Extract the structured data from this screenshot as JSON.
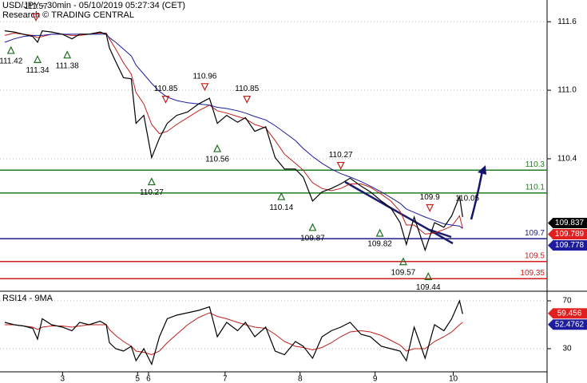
{
  "chart_data": [
    {
      "type": "line",
      "title": "USD/JPY - 30min - 05/10/2019 05:27:34 (CET)",
      "subtitle": "Research © TRADING CENTRAL",
      "x": [
        2,
        8,
        14,
        20,
        23,
        26,
        32,
        39,
        45,
        50,
        56,
        63,
        67,
        69,
        73,
        78,
        83,
        86,
        91,
        96,
        101,
        106,
        112,
        119,
        126,
        133,
        138,
        144,
        151,
        156,
        162,
        169,
        175,
        181,
        188,
        193,
        199,
        205,
        211,
        217,
        223,
        230,
        236,
        243,
        249,
        255,
        259,
        264,
        271,
        277,
        283,
        288,
        293,
        295
      ],
      "xlim": [
        0,
        348
      ],
      "ylim": [
        109.24,
        111.79
      ],
      "yticks": [
        111.6,
        {
          "value": 111,
          "label": "111.0"
        },
        110.4
      ],
      "grid": true,
      "series": [
        {
          "color": "#000000",
          "values": [
            111.52,
            111.51,
            111.49,
            111.47,
            111.42,
            111.52,
            111.51,
            111.49,
            111.45,
            111.49,
            111.49,
            111.51,
            111.49,
            111.37,
            111.25,
            111.11,
            111.1,
            110.71,
            110.78,
            110.41,
            110.58,
            110.71,
            110.78,
            110.81,
            110.88,
            110.93,
            110.71,
            110.78,
            110.72,
            110.76,
            110.64,
            110.68,
            110.41,
            110.31,
            110.31,
            110.24,
            110.03,
            110.11,
            110.14,
            110.18,
            110.23,
            110.16,
            110.11,
            110.03,
            109.97,
            109.84,
            109.65,
            109.89,
            109.6,
            109.84,
            109.8,
            109.9,
            110.07,
            109.89
          ]
        },
        {
          "color": "#1c1c9c",
          "values": [
            111.42,
            111.45,
            111.47,
            111.48,
            111.48,
            111.48,
            111.49,
            111.49,
            111.49,
            111.49,
            111.49,
            111.49,
            111.49,
            111.46,
            111.42,
            111.36,
            111.3,
            111.22,
            111.14,
            111.06,
            110.99,
            110.94,
            110.91,
            110.89,
            110.88,
            110.87,
            110.85,
            110.84,
            110.82,
            110.8,
            110.77,
            110.74,
            110.69,
            110.63,
            110.56,
            110.49,
            110.42,
            110.36,
            110.31,
            110.27,
            110.24,
            110.2,
            110.16,
            110.11,
            110.06,
            110.01,
            109.96,
            109.93,
            109.89,
            109.86,
            109.83,
            109.82,
            109.81,
            109.79
          ]
        },
        {
          "color": "#c0201c",
          "values": [
            111.48,
            111.5,
            111.49,
            111.48,
            111.46,
            111.47,
            111.49,
            111.49,
            111.48,
            111.48,
            111.49,
            111.5,
            111.5,
            111.45,
            111.36,
            111.24,
            111.14,
            110.98,
            110.88,
            110.7,
            110.62,
            110.64,
            110.7,
            110.76,
            110.82,
            110.87,
            110.82,
            110.8,
            110.77,
            110.75,
            110.7,
            110.67,
            110.56,
            110.44,
            110.36,
            110.3,
            110.19,
            110.14,
            110.12,
            110.14,
            110.18,
            110.18,
            110.15,
            110.09,
            110.03,
            109.94,
            109.82,
            109.82,
            109.74,
            109.75,
            109.78,
            109.81,
            109.9,
            109.79
          ]
        }
      ],
      "levels": [
        {
          "value": 110.3,
          "color": "#1e7d1e"
        },
        {
          "value": 110.1,
          "color": "#1e7d1e"
        },
        {
          "value": 109.7,
          "color": "#1c1c8c"
        },
        {
          "value": 109.5,
          "color": "#d01c1c"
        },
        {
          "value": 109.35,
          "color": "#d01c1c"
        }
      ],
      "last_values": [
        {
          "value": 109.837,
          "color": "#000000"
        },
        {
          "value": 109.789,
          "color": "#e02020"
        },
        {
          "value": 109.778,
          "color": "#1c1c9c"
        }
      ],
      "annotations": [
        {
          "value": 111.42,
          "x": 6,
          "kind": "low"
        },
        {
          "value": 111.57,
          "x": 22,
          "kind": "high"
        },
        {
          "value": 111.34,
          "x": 23,
          "kind": "low"
        },
        {
          "value": 111.38,
          "x": 42,
          "kind": "low"
        },
        {
          "value": 110.27,
          "x": 96,
          "kind": "low"
        },
        {
          "value": 110.85,
          "x": 105,
          "kind": "high"
        },
        {
          "value": 110.96,
          "x": 130,
          "kind": "high"
        },
        {
          "value": 110.56,
          "x": 138,
          "kind": "low"
        },
        {
          "value": 110.85,
          "x": 157,
          "kind": "high"
        },
        {
          "value": 110.14,
          "x": 179,
          "kind": "low"
        },
        {
          "value": 109.87,
          "x": 199,
          "kind": "low"
        },
        {
          "value": 110.27,
          "x": 217,
          "kind": "high"
        },
        {
          "value": 109.82,
          "x": 242,
          "kind": "low"
        },
        {
          "value": 109.57,
          "x": 257,
          "kind": "low"
        },
        {
          "value": 109.44,
          "x": 273,
          "kind": "low"
        },
        {
          "value": 109.9,
          "x": 274,
          "kind": "high"
        },
        {
          "value": 110.05,
          "x": 298,
          "kind": "target"
        }
      ]
    },
    {
      "type": "line",
      "title": "RSI14 - 9MA",
      "x": [
        2,
        8,
        14,
        20,
        23,
        26,
        32,
        39,
        45,
        50,
        56,
        63,
        67,
        69,
        73,
        78,
        83,
        86,
        91,
        96,
        101,
        106,
        112,
        119,
        126,
        133,
        138,
        144,
        151,
        156,
        162,
        169,
        175,
        181,
        188,
        193,
        199,
        205,
        211,
        217,
        223,
        230,
        236,
        243,
        249,
        255,
        259,
        264,
        271,
        277,
        283,
        288,
        293,
        295
      ],
      "xlim": [
        0,
        348
      ],
      "xticks": [
        {
          "value": 39,
          "label": "3"
        },
        {
          "value": 87,
          "label": "5"
        },
        {
          "value": 94,
          "label": "6"
        },
        {
          "value": 143,
          "label": "7"
        },
        {
          "value": 191,
          "label": "8"
        },
        {
          "value": 239,
          "label": "9"
        },
        {
          "value": 289,
          "label": "10"
        }
      ],
      "ylim": [
        9.3,
        78
      ],
      "yticks": [
        70,
        30
      ],
      "grid": true,
      "series": [
        {
          "color": "#000000",
          "values": [
            52,
            50,
            49,
            47,
            38,
            55,
            50,
            48,
            45,
            52,
            50,
            53,
            50,
            35,
            30,
            28,
            32,
            20,
            30,
            17,
            40,
            55,
            58,
            60,
            62,
            65,
            40,
            52,
            45,
            52,
            40,
            48,
            28,
            25,
            36,
            32,
            22,
            40,
            45,
            48,
            52,
            42,
            40,
            32,
            30,
            28,
            20,
            48,
            22,
            50,
            45,
            55,
            70,
            59
          ]
        },
        {
          "color": "#c0201c",
          "values": [
            50,
            50,
            49,
            48,
            46,
            48,
            49,
            49,
            48,
            49,
            50,
            50,
            50,
            46,
            41,
            36,
            32,
            28,
            27,
            25,
            28,
            35,
            42,
            50,
            56,
            60,
            57,
            55,
            52,
            50,
            48,
            47,
            42,
            36,
            32,
            31,
            29,
            31,
            35,
            40,
            44,
            45,
            44,
            41,
            37,
            33,
            28,
            30,
            30,
            36,
            40,
            44,
            50,
            52
          ]
        }
      ],
      "last_values": [
        {
          "value": 59.456,
          "color": "#e02020"
        },
        {
          "value": 52.4762,
          "color": "#1c1c9c"
        }
      ]
    }
  ]
}
